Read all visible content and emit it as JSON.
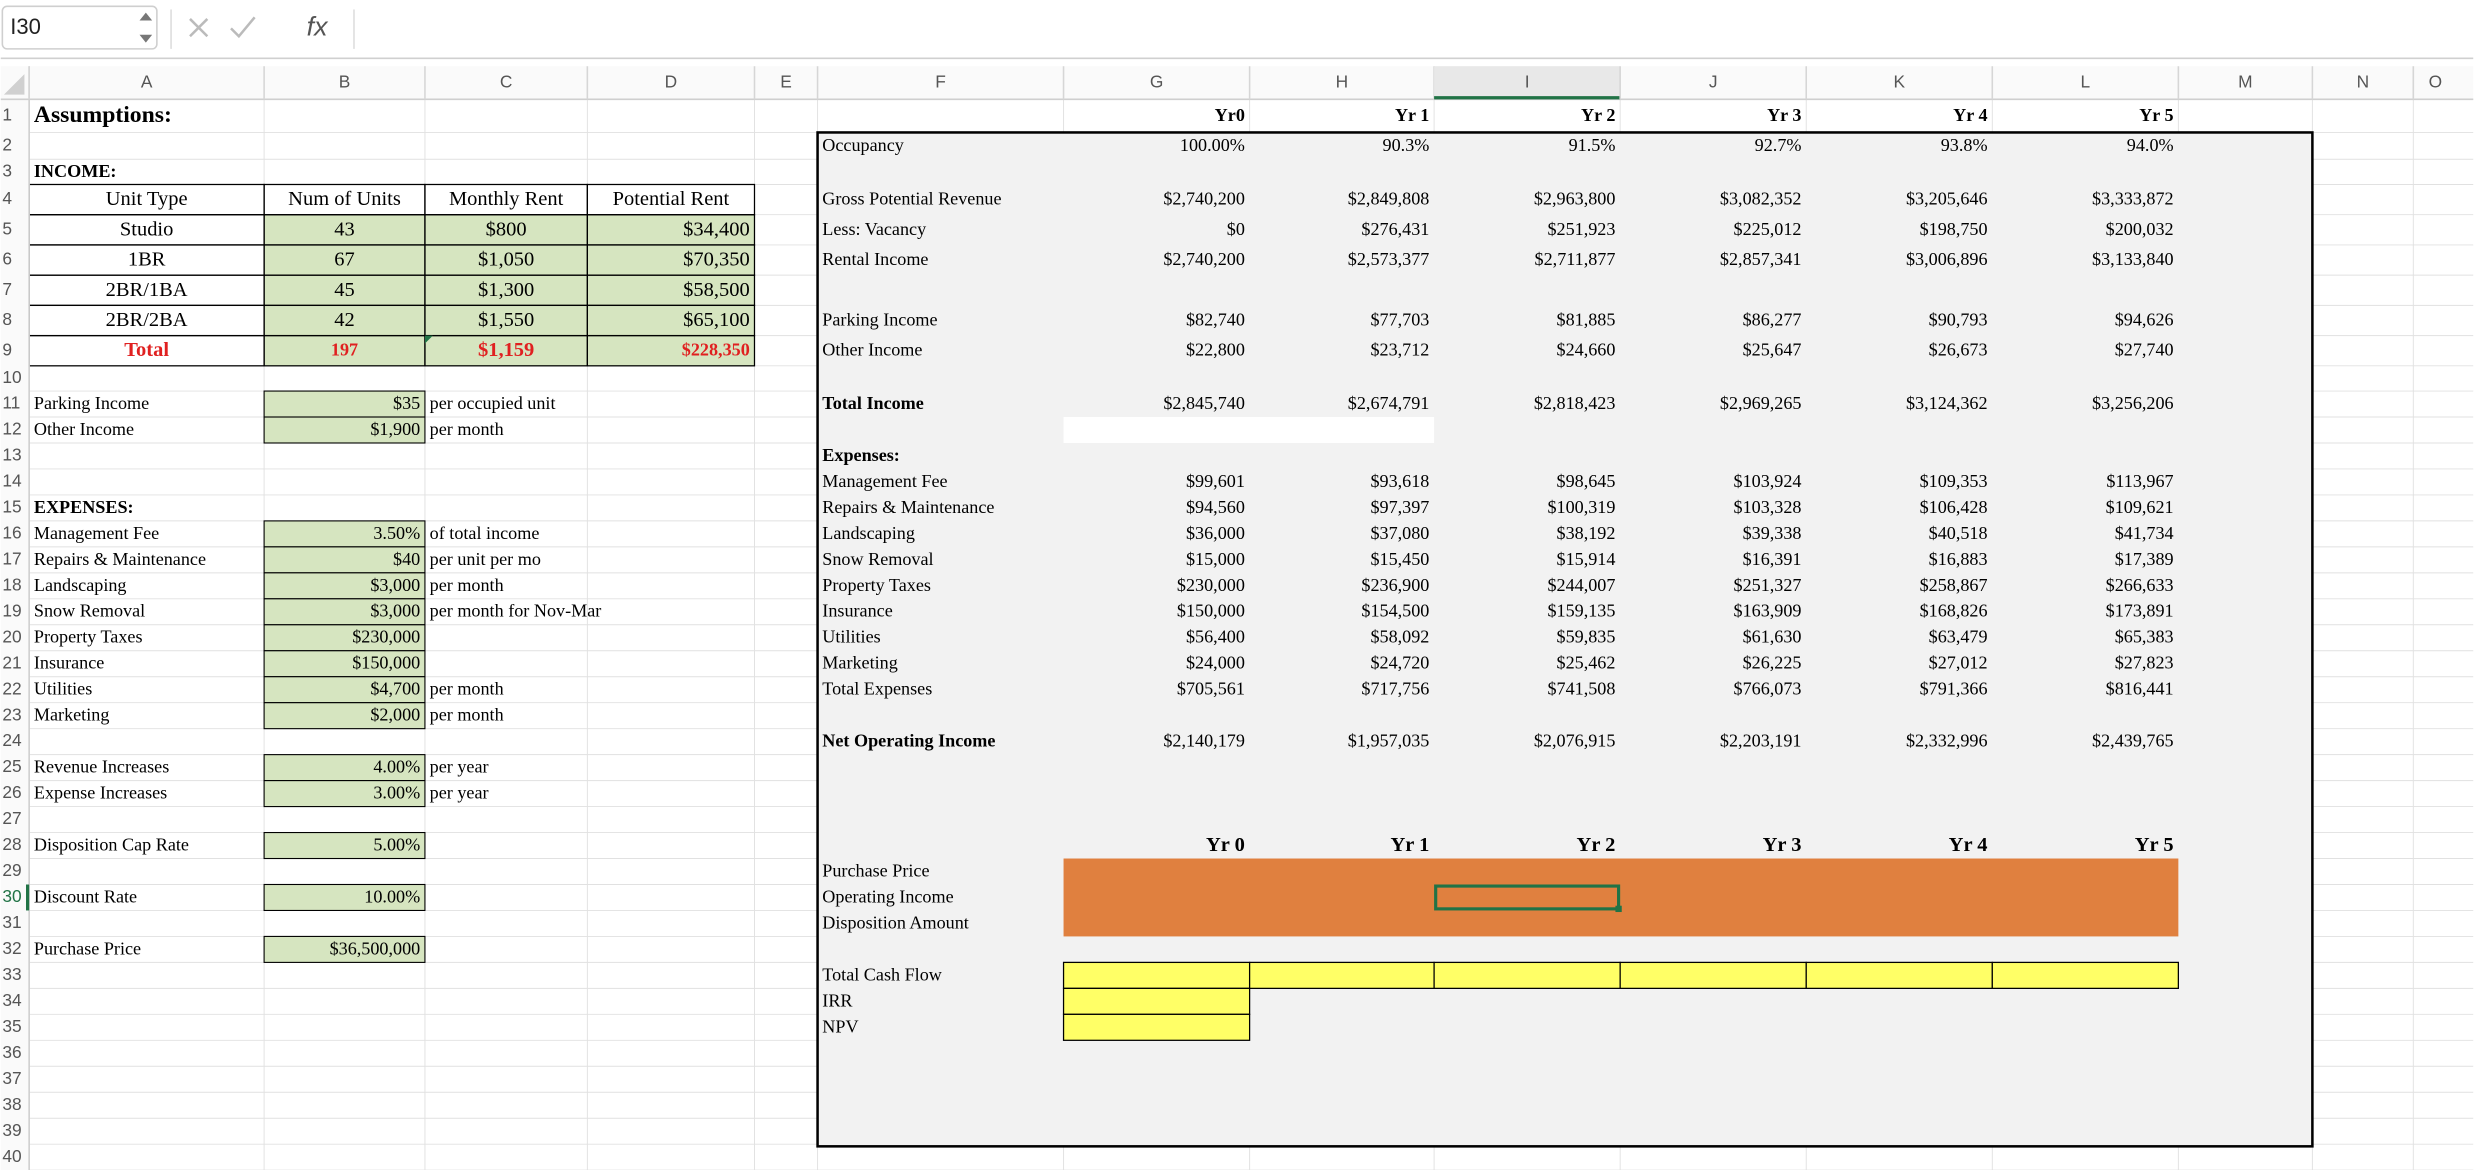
{
  "formula_bar": {
    "name_box": "I30",
    "function_label": "fx"
  },
  "sheet": {
    "column_headers": [
      "A",
      "B",
      "C",
      "D",
      "E",
      "F",
      "G",
      "H",
      "I",
      "J",
      "K",
      "L",
      "M",
      "N",
      "O"
    ],
    "row_headers": [
      "1",
      "2",
      "3",
      "4",
      "5",
      "6",
      "7",
      "8",
      "9",
      "10",
      "11",
      "12",
      "13",
      "14",
      "15",
      "16",
      "17",
      "18",
      "19",
      "20",
      "21",
      "22",
      "23",
      "24",
      "25",
      "26",
      "27",
      "28",
      "29",
      "30",
      "31",
      "32",
      "33",
      "34",
      "35",
      "36",
      "37",
      "38",
      "39",
      "40"
    ],
    "rows": [
      {
        "A": "Assumptions:",
        "G": "Yr0",
        "H": "Yr 1",
        "I": "Yr 2",
        "J": "Yr 3",
        "K": "Yr 4",
        "L": "Yr 5"
      },
      {
        "F": "Occupancy",
        "G": "100.00%",
        "H": "90.3%",
        "I": "91.5%",
        "J": "92.7%",
        "K": "93.8%",
        "L": "94.0%"
      },
      {
        "A": "INCOME:"
      },
      {
        "A": "Unit Type",
        "B": "Num of Units",
        "C": "Monthly Rent",
        "D": "Potential Rent",
        "F": "Gross Potential Revenue",
        "G": "$2,740,200",
        "H": "$2,849,808",
        "I": "$2,963,800",
        "J": "$3,082,352",
        "K": "$3,205,646",
        "L": "$3,333,872"
      },
      {
        "A": "Studio",
        "B": "43",
        "C": "$800",
        "D": "$34,400",
        "F": "Less: Vacancy",
        "G": "$0",
        "H": "$276,431",
        "I": "$251,923",
        "J": "$225,012",
        "K": "$198,750",
        "L": "$200,032"
      },
      {
        "A": "1BR",
        "B": "67",
        "C": "$1,050",
        "D": "$70,350",
        "F": "Rental Income",
        "G": "$2,740,200",
        "H": "$2,573,377",
        "I": "$2,711,877",
        "J": "$2,857,341",
        "K": "$3,006,896",
        "L": "$3,133,840"
      },
      {
        "A": "2BR/1BA",
        "B": "45",
        "C": "$1,300",
        "D": "$58,500"
      },
      {
        "A": "2BR/2BA",
        "B": "42",
        "C": "$1,550",
        "D": "$65,100",
        "F": "Parking Income",
        "G": "$82,740",
        "H": "$77,703",
        "I": "$81,885",
        "J": "$86,277",
        "K": "$90,793",
        "L": "$94,626"
      },
      {
        "A": "Total",
        "B": "197",
        "C": "$1,159",
        "D": "$228,350",
        "F": "Other Income",
        "G": "$22,800",
        "H": "$23,712",
        "I": "$24,660",
        "J": "$25,647",
        "K": "$26,673",
        "L": "$27,740"
      },
      {},
      {
        "A": "Parking Income",
        "B": "$35",
        "C": "per occupied unit",
        "F": "Total Income",
        "G": "$2,845,740",
        "H": "$2,674,791",
        "I": "$2,818,423",
        "J": "$2,969,265",
        "K": "$3,124,362",
        "L": "$3,256,206"
      },
      {
        "A": "Other Income",
        "B": "$1,900",
        "C": "per month"
      },
      {
        "F": "Expenses:"
      },
      {
        "F": "Management Fee",
        "G": "$99,601",
        "H": "$93,618",
        "I": "$98,645",
        "J": "$103,924",
        "K": "$109,353",
        "L": "$113,967"
      },
      {
        "A": "EXPENSES:",
        "F": "Repairs & Maintenance",
        "G": "$94,560",
        "H": "$97,397",
        "I": "$100,319",
        "J": "$103,328",
        "K": "$106,428",
        "L": "$109,621"
      },
      {
        "A": "Management Fee",
        "B": "3.50%",
        "C": "of total income",
        "F": "Landscaping",
        "G": "$36,000",
        "H": "$37,080",
        "I": "$38,192",
        "J": "$39,338",
        "K": "$40,518",
        "L": "$41,734"
      },
      {
        "A": "Repairs & Maintenance",
        "B": "$40",
        "C": "per unit per mo",
        "F": "Snow Removal",
        "G": "$15,000",
        "H": "$15,450",
        "I": "$15,914",
        "J": "$16,391",
        "K": "$16,883",
        "L": "$17,389"
      },
      {
        "A": "Landscaping",
        "B": "$3,000",
        "C": "per month",
        "F": "Property Taxes",
        "G": "$230,000",
        "H": "$236,900",
        "I": "$244,007",
        "J": "$251,327",
        "K": "$258,867",
        "L": "$266,633"
      },
      {
        "A": "Snow Removal",
        "B": "$3,000",
        "C": "per month for Nov-Mar",
        "F": "Insurance",
        "G": "$150,000",
        "H": "$154,500",
        "I": "$159,135",
        "J": "$163,909",
        "K": "$168,826",
        "L": "$173,891"
      },
      {
        "A": "Property Taxes",
        "B": "$230,000",
        "F": "Utilities",
        "G": "$56,400",
        "H": "$58,092",
        "I": "$59,835",
        "J": "$61,630",
        "K": "$63,479",
        "L": "$65,383"
      },
      {
        "A": "Insurance",
        "B": "$150,000",
        "F": "Marketing",
        "G": "$24,000",
        "H": "$24,720",
        "I": "$25,462",
        "J": "$26,225",
        "K": "$27,012",
        "L": "$27,823"
      },
      {
        "A": "Utilities",
        "B": "$4,700",
        "C": "per month",
        "F": "Total Expenses",
        "G": "$705,561",
        "H": "$717,756",
        "I": "$741,508",
        "J": "$766,073",
        "K": "$791,366",
        "L": "$816,441"
      },
      {
        "A": "Marketing",
        "B": "$2,000",
        "C": "per month"
      },
      {
        "F": "Net Operating Income",
        "G": "$2,140,179",
        "H": "$1,957,035",
        "I": "$2,076,915",
        "J": "$2,203,191",
        "K": "$2,332,996",
        "L": "$2,439,765"
      },
      {
        "A": "Revenue Increases",
        "B": "4.00%",
        "C": "per year"
      },
      {
        "A": "Expense Increases",
        "B": "3.00%",
        "C": "per year"
      },
      {},
      {
        "A": "Disposition Cap Rate",
        "B": "5.00%",
        "G": "Yr 0",
        "H": "Yr 1",
        "I": "Yr 2",
        "J": "Yr 3",
        "K": "Yr 4",
        "L": "Yr 5"
      },
      {
        "F": "Purchase Price"
      },
      {
        "A": "Discount Rate",
        "B": "10.00%",
        "F": "Operating Income"
      },
      {
        "F": "Disposition Amount"
      },
      {
        "A": "Purchase Price",
        "B": "$36,500,000"
      },
      {
        "F": "Total Cash Flow"
      },
      {
        "F": "IRR"
      },
      {
        "F": "NPV"
      },
      {},
      {},
      {},
      {},
      {}
    ]
  }
}
